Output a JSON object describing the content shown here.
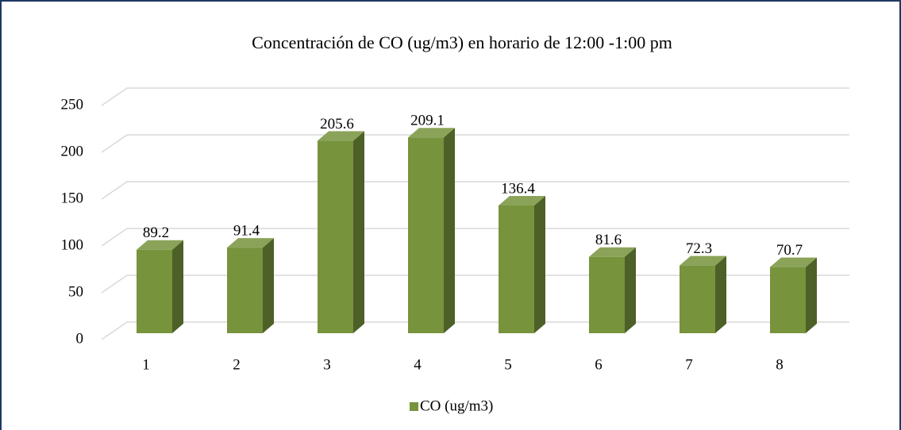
{
  "chart_data": {
    "type": "bar3d",
    "title": "Concentración de CO (ug/m3) en horario de 12:00 -1:00 pm",
    "categories": [
      "1",
      "2",
      "3",
      "4",
      "5",
      "6",
      "7",
      "8"
    ],
    "series": [
      {
        "name": "CO (ug/m3)",
        "color": "#77933c",
        "values": [
          89.2,
          91.4,
          205.6,
          209.1,
          136.4,
          81.6,
          72.3,
          70.7
        ]
      }
    ],
    "ylim": [
      0,
      250
    ],
    "yticks": [
      0,
      50,
      100,
      150,
      200,
      250
    ],
    "grid": true,
    "legend": "bottom"
  }
}
